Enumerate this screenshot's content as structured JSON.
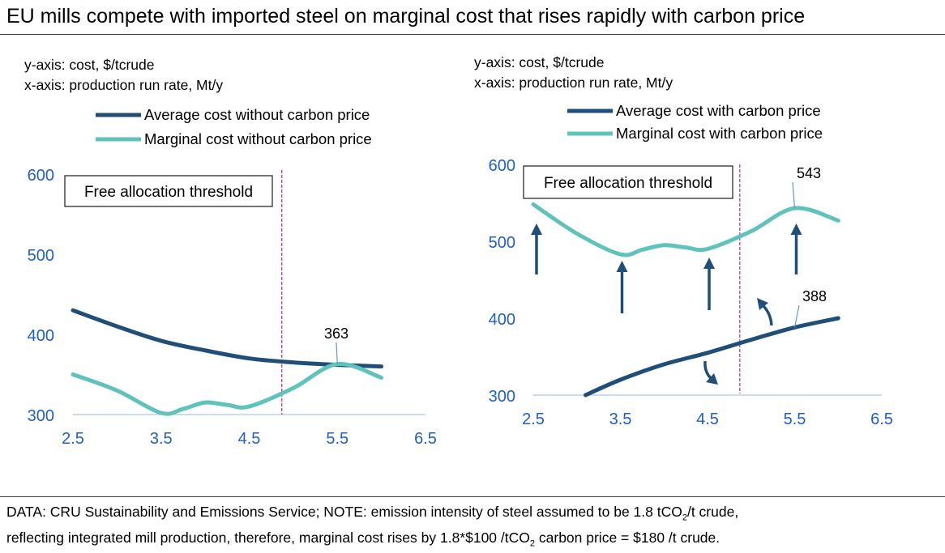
{
  "title": "EU mills compete with imported steel on marginal cost that rises rapidly with carbon price",
  "footer": {
    "line1_a": "DATA: CRU Sustainability and Emissions Service; NOTE: emission intensity of steel assumed to be 1.8 tCO",
    "line1_sub": "2",
    "line1_b": "/t crude,",
    "line2_a": "reflecting integrated mill production, therefore, marginal cost rises by 1.8*$100 /tCO",
    "line2_sub": "2",
    "line2_b": " carbon price = $180 /t crude."
  },
  "colors": {
    "average": "#1F4E79",
    "marginal": "#5FC3BC",
    "axis": "#1F5FC8",
    "threshold": "#C0399E"
  },
  "chart_data": [
    {
      "type": "line",
      "ylabel": "y-axis: cost, $/tcrude",
      "xlabel": "x-axis: production run rate, Mt/y",
      "xlim": [
        2.5,
        6.5
      ],
      "ylim": [
        300,
        600
      ],
      "xticks": [
        "2.5",
        "3.5",
        "4.5",
        "5.5",
        "6.5"
      ],
      "yticks": [
        "300",
        "400",
        "500",
        "600"
      ],
      "threshold_x": 4.87,
      "threshold_label": "Free allocation threshold",
      "legend": [
        "Average cost without carbon price",
        "Marginal cost without carbon price"
      ],
      "series": [
        {
          "name": "Average cost without carbon price",
          "x": [
            2.5,
            3.0,
            3.5,
            4.0,
            4.5,
            5.0,
            5.5,
            6.0
          ],
          "y": [
            430,
            410,
            392,
            380,
            370,
            365,
            362,
            360
          ]
        },
        {
          "name": "Marginal cost without carbon price",
          "x": [
            2.5,
            3.0,
            3.5,
            3.75,
            4.0,
            4.25,
            4.5,
            5.0,
            5.5,
            6.0
          ],
          "y": [
            350,
            330,
            302,
            307,
            315,
            312,
            310,
            333,
            363,
            346
          ]
        }
      ],
      "annotations": [
        {
          "label": "363",
          "x": 5.5,
          "y": 363
        }
      ]
    },
    {
      "type": "line",
      "ylabel": "y-axis: cost, $/tcrude",
      "xlabel": "x-axis: production run rate, Mt/y",
      "xlim": [
        2.5,
        6.5
      ],
      "ylim": [
        300,
        600
      ],
      "xticks": [
        "2.5",
        "3.5",
        "4.5",
        "5.5",
        "6.5"
      ],
      "yticks": [
        "300",
        "400",
        "500",
        "600"
      ],
      "threshold_x": 4.87,
      "threshold_label": "Free allocation threshold",
      "legend": [
        "Average cost with carbon price",
        "Marginal cost with carbon price"
      ],
      "series": [
        {
          "name": "Average cost with carbon price",
          "x": [
            3.1,
            3.5,
            4.0,
            4.5,
            5.0,
            5.5,
            6.0
          ],
          "y": [
            300,
            320,
            340,
            355,
            372,
            388,
            400
          ]
        },
        {
          "name": "Marginal cost with carbon price",
          "x": [
            2.5,
            3.0,
            3.5,
            3.75,
            4.0,
            4.25,
            4.5,
            5.0,
            5.5,
            6.0
          ],
          "y": [
            548,
            510,
            483,
            489,
            495,
            492,
            490,
            513,
            543,
            527
          ]
        }
      ],
      "annotations": [
        {
          "label": "543",
          "x": 5.5,
          "y": 543
        },
        {
          "label": "388",
          "x": 5.5,
          "y": 388
        }
      ],
      "up_arrows_x": [
        2.5,
        3.5,
        4.5,
        5.5
      ]
    }
  ]
}
